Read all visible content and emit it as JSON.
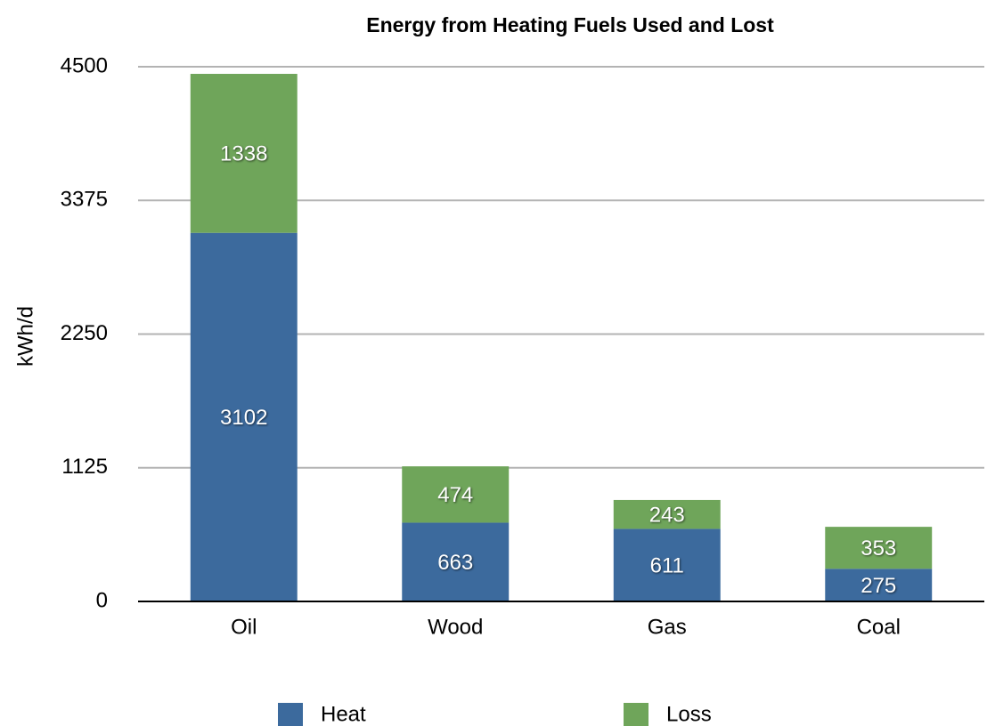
{
  "chart_data": {
    "type": "stacked_bar",
    "title": "Energy from Heating Fuels Used and Lost",
    "y_label": "kWh/d",
    "categories": [
      "Oil",
      "Wood",
      "Gas",
      "Coal"
    ],
    "series": [
      {
        "name": "Heat",
        "color": "#3c6a9d",
        "values": [
          3102,
          663,
          611,
          275
        ]
      },
      {
        "name": "Loss",
        "color": "#6fa55a",
        "values": [
          1338,
          474,
          243,
          353
        ]
      }
    ],
    "ylim": [
      0,
      4500
    ],
    "yticks": [
      0,
      1125,
      2250,
      3375,
      4500
    ],
    "grid": true,
    "legend": "bottom"
  }
}
